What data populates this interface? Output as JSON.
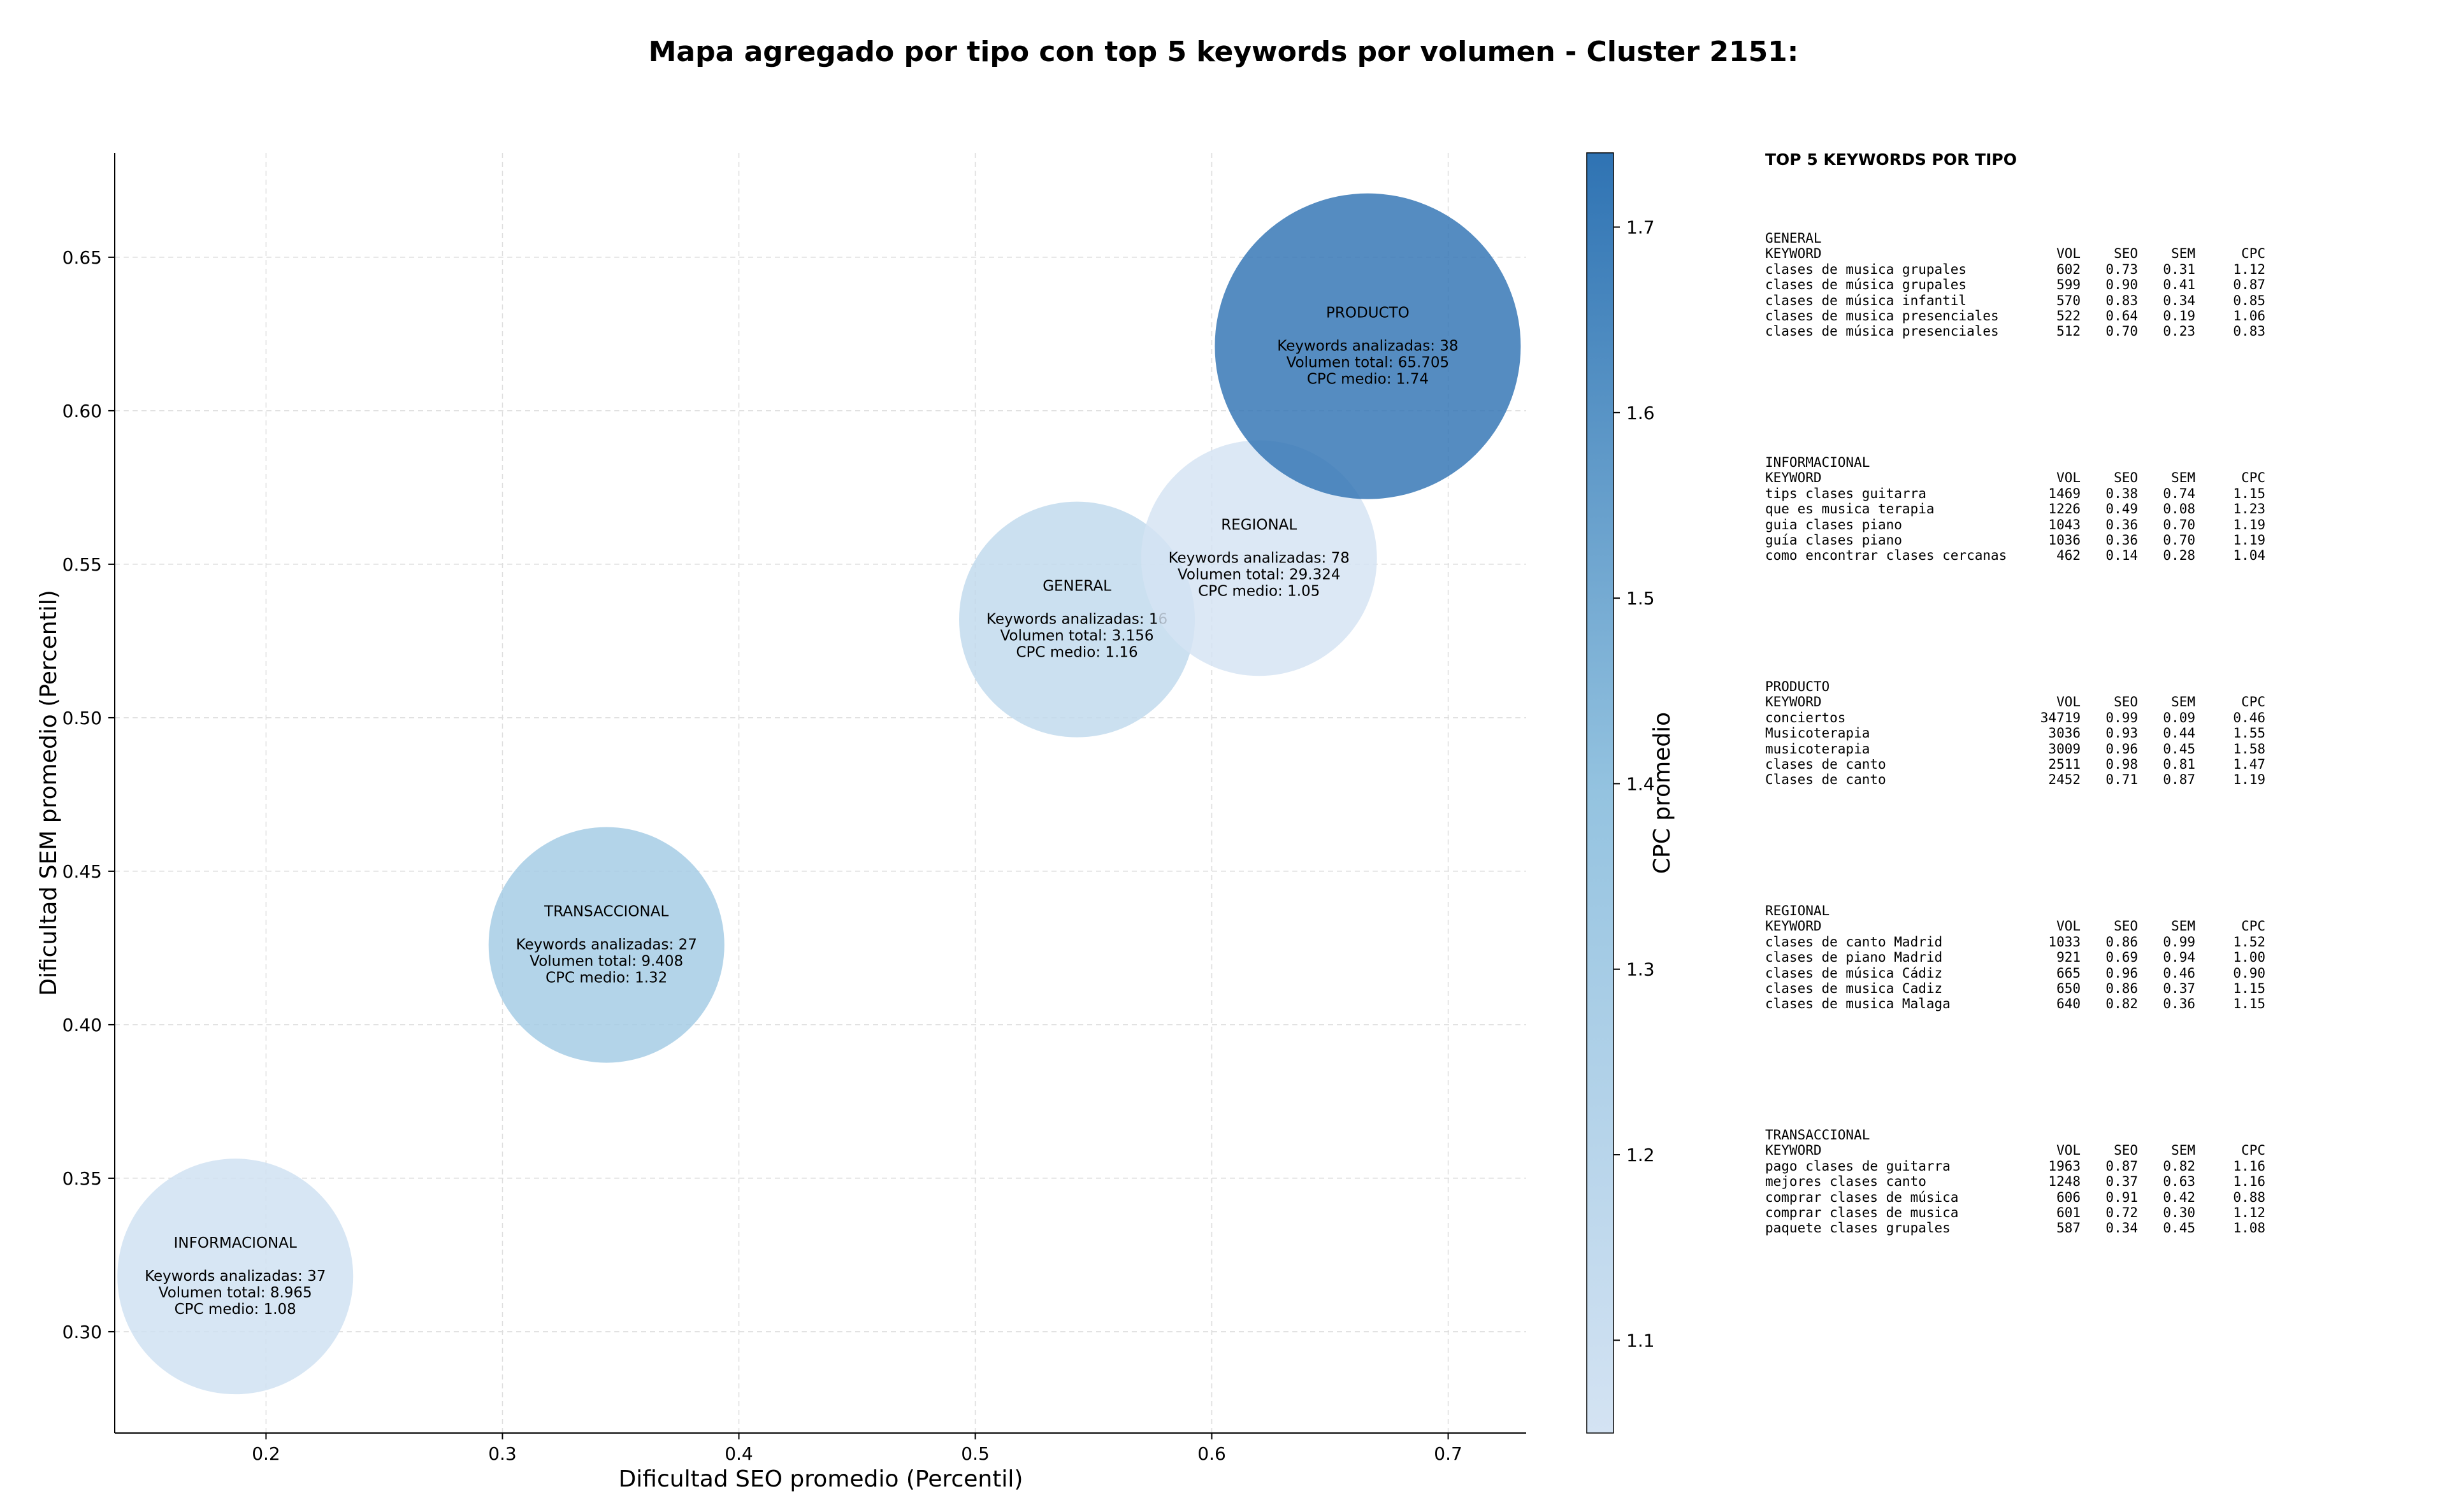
{
  "title": "Mapa agregado por tipo con top 5 keywords por volumen - Cluster 2151:",
  "chart_data": {
    "type": "scatter",
    "xlabel": "Dificultad SEO promedio (Percentil)",
    "ylabel": "Dificultad SEM promedio (Percentil)",
    "xlim": [
      0.136,
      0.733
    ],
    "ylim": [
      0.267,
      0.684
    ],
    "xticks": [
      0.2,
      0.3,
      0.4,
      0.5,
      0.6,
      0.7
    ],
    "yticks": [
      0.3,
      0.35,
      0.4,
      0.45,
      0.5,
      0.55,
      0.6,
      0.65
    ],
    "grid": true,
    "colorbar": {
      "label": "CPC promedio",
      "range": [
        1.05,
        1.74
      ],
      "ticks": [
        1.1,
        1.2,
        1.3,
        1.4,
        1.5,
        1.6,
        1.7
      ],
      "colors": [
        "#d4e3f3",
        "#2f73b3"
      ]
    },
    "points": [
      {
        "label": "INFORMACIONAL",
        "x": 0.187,
        "y": 0.318,
        "keywords": 37,
        "volume": 8965,
        "cpc": 1.08,
        "lines": [
          "Keywords analizadas: 37",
          "Volumen total: 8.965",
          "CPC medio: 1.08"
        ]
      },
      {
        "label": "TRANSACCIONAL",
        "x": 0.344,
        "y": 0.426,
        "keywords": 27,
        "volume": 9408,
        "cpc": 1.32,
        "lines": [
          "Keywords analizadas: 27",
          "Volumen total: 9.408",
          "CPC medio: 1.32"
        ]
      },
      {
        "label": "GENERAL",
        "x": 0.543,
        "y": 0.532,
        "keywords": 16,
        "volume": 3156,
        "cpc": 1.16,
        "lines": [
          "Keywords analizadas: 16",
          "Volumen total: 3.156",
          "CPC medio: 1.16"
        ]
      },
      {
        "label": "REGIONAL",
        "x": 0.62,
        "y": 0.552,
        "keywords": 78,
        "volume": 29324,
        "cpc": 1.05,
        "lines": [
          "Keywords analizadas: 78",
          "Volumen total: 29.324",
          "CPC medio: 1.05"
        ]
      },
      {
        "label": "PRODUCTO",
        "x": 0.666,
        "y": 0.621,
        "keywords": 38,
        "volume": 65705,
        "cpc": 1.74,
        "lines": [
          "Keywords analizadas: 38",
          "Volumen total: 65.705",
          "CPC medio: 1.74"
        ]
      }
    ]
  },
  "top5": {
    "heading": "TOP 5 KEYWORDS POR TIPO",
    "columns": [
      "KEYWORD",
      "VOL",
      "SEO",
      "SEM",
      "CPC"
    ],
    "groups": [
      {
        "type": "GENERAL",
        "rows": [
          [
            "clases de musica grupales",
            "602",
            "0.73",
            "0.31",
            "1.12"
          ],
          [
            "clases de música grupales",
            "599",
            "0.90",
            "0.41",
            "0.87"
          ],
          [
            "clases de música infantil",
            "570",
            "0.83",
            "0.34",
            "0.85"
          ],
          [
            "clases de musica presenciales",
            "522",
            "0.64",
            "0.19",
            "1.06"
          ],
          [
            "clases de música presenciales",
            "512",
            "0.70",
            "0.23",
            "0.83"
          ]
        ]
      },
      {
        "type": "INFORMACIONAL",
        "rows": [
          [
            "tips clases guitarra",
            "1469",
            "0.38",
            "0.74",
            "1.15"
          ],
          [
            "que es musica terapia",
            "1226",
            "0.49",
            "0.08",
            "1.23"
          ],
          [
            "guia clases piano",
            "1043",
            "0.36",
            "0.70",
            "1.19"
          ],
          [
            "guía clases piano",
            "1036",
            "0.36",
            "0.70",
            "1.19"
          ],
          [
            "como encontrar clases cercanas",
            "462",
            "0.14",
            "0.28",
            "1.04"
          ]
        ]
      },
      {
        "type": "PRODUCTO",
        "rows": [
          [
            "conciertos",
            "34719",
            "0.99",
            "0.09",
            "0.46"
          ],
          [
            "Musicoterapia",
            "3036",
            "0.93",
            "0.44",
            "1.55"
          ],
          [
            "musicoterapia",
            "3009",
            "0.96",
            "0.45",
            "1.58"
          ],
          [
            "clases de canto",
            "2511",
            "0.98",
            "0.81",
            "1.47"
          ],
          [
            "Clases de canto",
            "2452",
            "0.71",
            "0.87",
            "1.19"
          ]
        ]
      },
      {
        "type": "REGIONAL",
        "rows": [
          [
            "clases de canto Madrid",
            "1033",
            "0.86",
            "0.99",
            "1.52"
          ],
          [
            "clases de piano Madrid",
            "921",
            "0.69",
            "0.94",
            "1.00"
          ],
          [
            "clases de música Cádiz",
            "665",
            "0.96",
            "0.46",
            "0.90"
          ],
          [
            "clases de musica Cadiz",
            "650",
            "0.86",
            "0.37",
            "1.15"
          ],
          [
            "clases de musica Malaga",
            "640",
            "0.82",
            "0.36",
            "1.15"
          ]
        ]
      },
      {
        "type": "TRANSACCIONAL",
        "rows": [
          [
            "pago clases de guitarra",
            "1963",
            "0.87",
            "0.82",
            "1.16"
          ],
          [
            "mejores clases canto",
            "1248",
            "0.37",
            "0.63",
            "1.16"
          ],
          [
            "comprar clases de música",
            "606",
            "0.91",
            "0.42",
            "0.88"
          ],
          [
            "comprar clases de musica",
            "601",
            "0.72",
            "0.30",
            "1.12"
          ],
          [
            "paquete clases grupales",
            "587",
            "0.34",
            "0.45",
            "1.08"
          ]
        ]
      }
    ]
  }
}
